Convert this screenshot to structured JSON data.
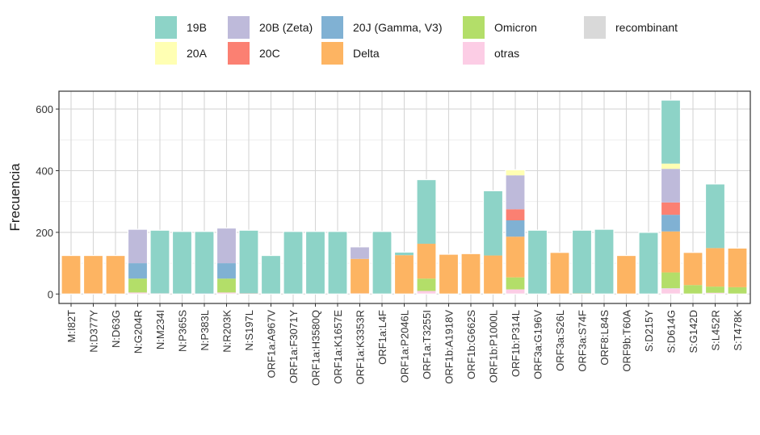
{
  "chart_data": {
    "type": "bar",
    "stacked": true,
    "title": "",
    "xlabel": "",
    "ylabel": "Frecuencia",
    "ylim": [
      0,
      660
    ],
    "yticks": [
      0,
      200,
      400,
      600
    ],
    "grid": true,
    "legend_position": "top",
    "categories": [
      "M:I82T",
      "N:D377Y",
      "N:D63G",
      "N:G204R",
      "N:M234I",
      "N:P365S",
      "N:P383L",
      "N:R203K",
      "N:S197L",
      "ORF1a:A967V",
      "ORF1a:F3071Y",
      "ORF1a:H3580Q",
      "ORF1a:K1657E",
      "ORF1a:K3353R",
      "ORF1a:L4F",
      "ORF1a:P2046L",
      "ORF1a:T3255I",
      "ORF1b:A1918V",
      "ORF1b:G662S",
      "ORF1b:P1000L",
      "ORF1b:P314L",
      "ORF3a:G196V",
      "ORF3a:S26L",
      "ORF3a:S74F",
      "ORF8:L84S",
      "ORF9b:T60A",
      "S:D215Y",
      "S:D614G",
      "S:G142D",
      "S:L452R",
      "S:T478K"
    ],
    "series": [
      {
        "name": "otras",
        "color": "#FCCDE5",
        "values": [
          0,
          2,
          0,
          5,
          2,
          0,
          0,
          5,
          0,
          0,
          0,
          0,
          0,
          2,
          0,
          0,
          10,
          0,
          0,
          0,
          15,
          0,
          0,
          0,
          0,
          0,
          0,
          17,
          0,
          4,
          0
        ]
      },
      {
        "name": "recombinant",
        "color": "#D9D9D9",
        "values": [
          0,
          0,
          0,
          0,
          0,
          0,
          0,
          0,
          0,
          0,
          0,
          0,
          0,
          0,
          0,
          0,
          0,
          0,
          0,
          0,
          0,
          0,
          0,
          0,
          0,
          0,
          0,
          2,
          0,
          0,
          0
        ]
      },
      {
        "name": "Omicron",
        "color": "#B3DE69",
        "values": [
          0,
          0,
          0,
          45,
          0,
          0,
          0,
          45,
          0,
          0,
          0,
          0,
          0,
          0,
          0,
          0,
          40,
          0,
          0,
          0,
          39,
          0,
          0,
          0,
          0,
          0,
          0,
          51,
          29,
          20,
          22
        ]
      },
      {
        "name": "Delta",
        "color": "#FDB462",
        "values": [
          125,
          123,
          125,
          0,
          0,
          0,
          0,
          0,
          0,
          0,
          0,
          0,
          0,
          112,
          0,
          126,
          113,
          129,
          131,
          125,
          132,
          0,
          135,
          2,
          0,
          125,
          0,
          133,
          106,
          125,
          127
        ]
      },
      {
        "name": "20J (Gamma, V3)",
        "color": "#80B1D3",
        "values": [
          0,
          0,
          0,
          50,
          0,
          0,
          2,
          50,
          0,
          0,
          0,
          0,
          0,
          0,
          0,
          0,
          0,
          0,
          0,
          0,
          53,
          0,
          0,
          0,
          0,
          0,
          0,
          54,
          0,
          0,
          0
        ]
      },
      {
        "name": "20C",
        "color": "#FB8072",
        "values": [
          0,
          0,
          0,
          0,
          0,
          0,
          0,
          0,
          2,
          0,
          0,
          0,
          0,
          0,
          0,
          0,
          0,
          0,
          0,
          0,
          36,
          0,
          0,
          0,
          0,
          0,
          0,
          40,
          0,
          0,
          0
        ]
      },
      {
        "name": "20B (Zeta)",
        "color": "#BEBADA",
        "values": [
          0,
          0,
          0,
          110,
          0,
          0,
          0,
          114,
          0,
          0,
          0,
          0,
          0,
          39,
          0,
          0,
          0,
          0,
          0,
          0,
          110,
          0,
          0,
          0,
          0,
          0,
          0,
          109,
          0,
          0,
          0
        ]
      },
      {
        "name": "20A",
        "color": "#FFFFB3",
        "values": [
          0,
          0,
          0,
          0,
          0,
          0,
          0,
          0,
          0,
          0,
          0,
          0,
          0,
          0,
          0,
          0,
          0,
          0,
          0,
          0,
          18,
          0,
          0,
          0,
          0,
          0,
          0,
          17,
          0,
          0,
          0
        ]
      },
      {
        "name": "19B",
        "color": "#8DD3C7",
        "values": [
          0,
          0,
          0,
          0,
          205,
          203,
          201,
          0,
          205,
          125,
          203,
          203,
          203,
          0,
          203,
          10,
          208,
          0,
          0,
          210,
          0,
          207,
          0,
          205,
          210,
          0,
          200,
          206,
          0,
          208,
          0
        ]
      }
    ],
    "legend": [
      {
        "name": "19B",
        "color": "#8DD3C7"
      },
      {
        "name": "20A",
        "color": "#FFFFB3"
      },
      {
        "name": "20B (Zeta)",
        "color": "#BEBADA"
      },
      {
        "name": "20C",
        "color": "#FB8072"
      },
      {
        "name": "20J (Gamma, V3)",
        "color": "#80B1D3"
      },
      {
        "name": "Delta",
        "color": "#FDB462"
      },
      {
        "name": "Omicron",
        "color": "#B3DE69"
      },
      {
        "name": "otras",
        "color": "#FCCDE5"
      },
      {
        "name": "recombinant",
        "color": "#D9D9D9"
      }
    ]
  }
}
